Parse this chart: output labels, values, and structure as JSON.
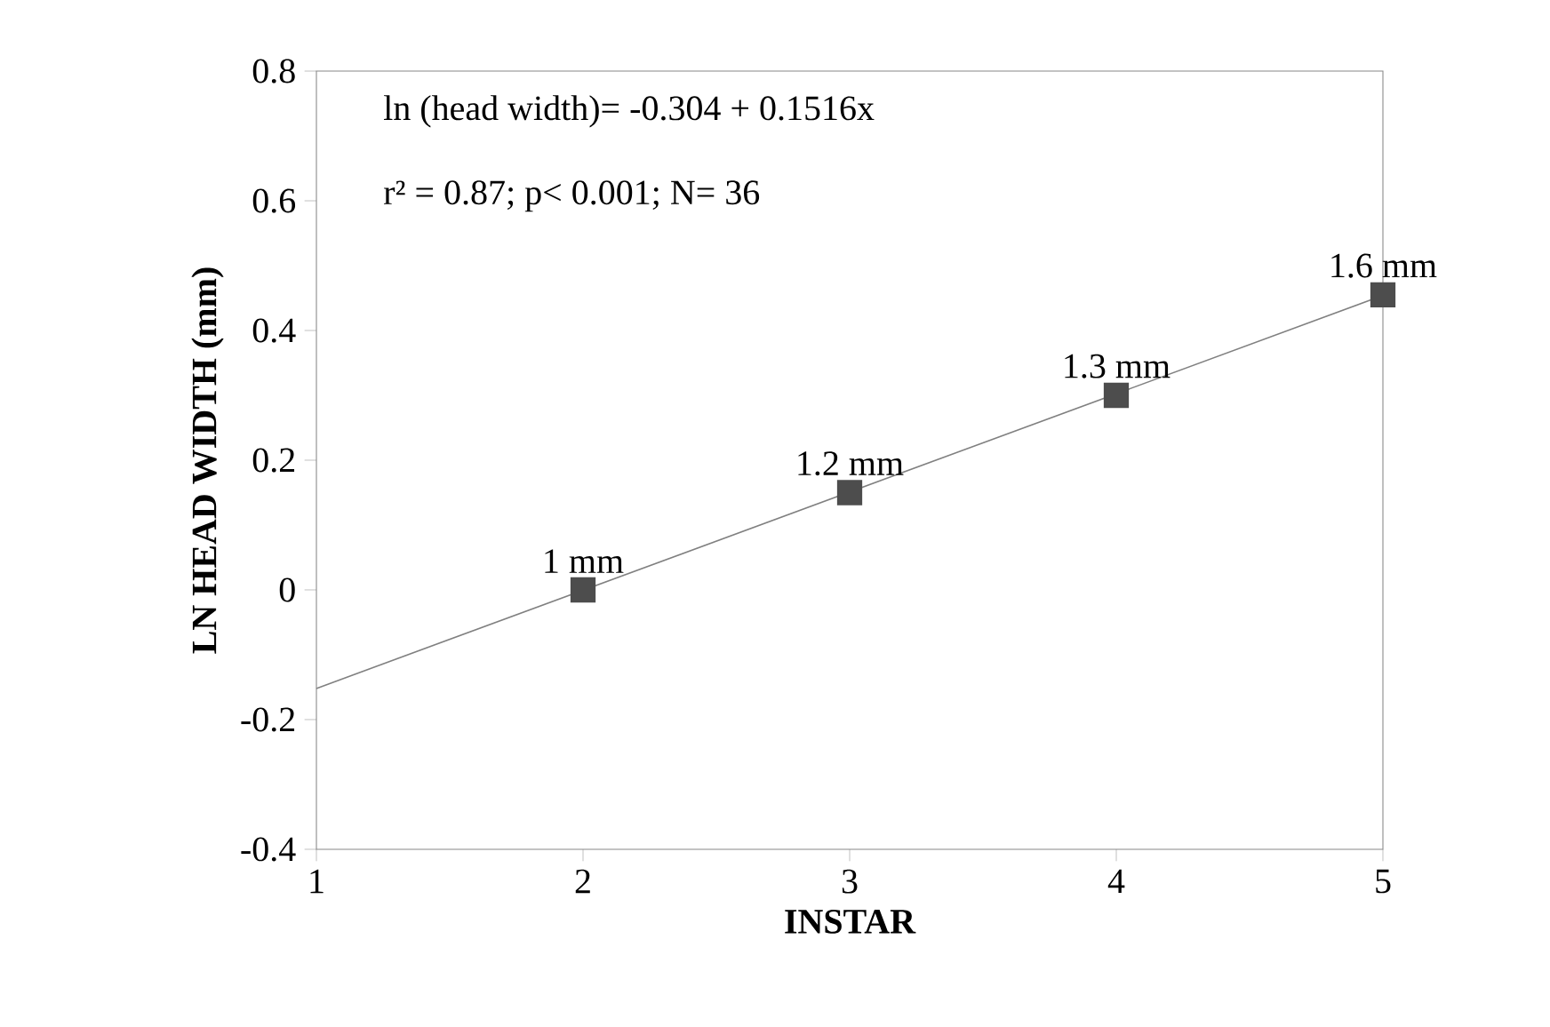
{
  "chart_data": {
    "type": "scatter",
    "xlabel": "INSTAR",
    "ylabel": "LN HEAD WIDTH (mm)",
    "series": [
      {
        "color": "#4d4d4d",
        "marker": "square",
        "x": [
          2,
          3,
          4,
          5
        ],
        "values": [
          0,
          0.15,
          0.3,
          0.455
        ]
      },
      {
        "type": "line",
        "color": "#808080",
        "marker": "none",
        "line_style": "solid",
        "x": [
          1,
          5
        ],
        "values": [
          -0.152,
          0.454
        ]
      }
    ],
    "xlim": [
      1,
      5
    ],
    "ylim": [
      -0.4,
      0.8
    ],
    "xticks": [
      1,
      2,
      3,
      4,
      5
    ],
    "yticks": [
      {
        "value": -0.4,
        "label": "-0.4"
      },
      {
        "value": -0.2,
        "label": "-0.2"
      },
      0,
      {
        "value": 0.2,
        "label": "0.2"
      },
      {
        "value": 0.4,
        "label": "0.4"
      },
      {
        "value": 0.6,
        "label": "0.6"
      },
      {
        "value": 0.8,
        "label": "0.8"
      }
    ],
    "grid": false,
    "annotations": [
      "ln (head width)= -0.304 + 0.1516x",
      "r² = 0.87; p< 0.001; N= 36",
      {
        "text": "1 mm",
        "x": 2,
        "y": 0
      },
      {
        "text": "1.2 mm",
        "x": 3,
        "y": 0.15
      },
      {
        "text": "1.3 mm",
        "x": 4,
        "y": 0.3
      },
      {
        "text": "1.6 mm",
        "x": 5,
        "y": 0.455
      }
    ]
  }
}
